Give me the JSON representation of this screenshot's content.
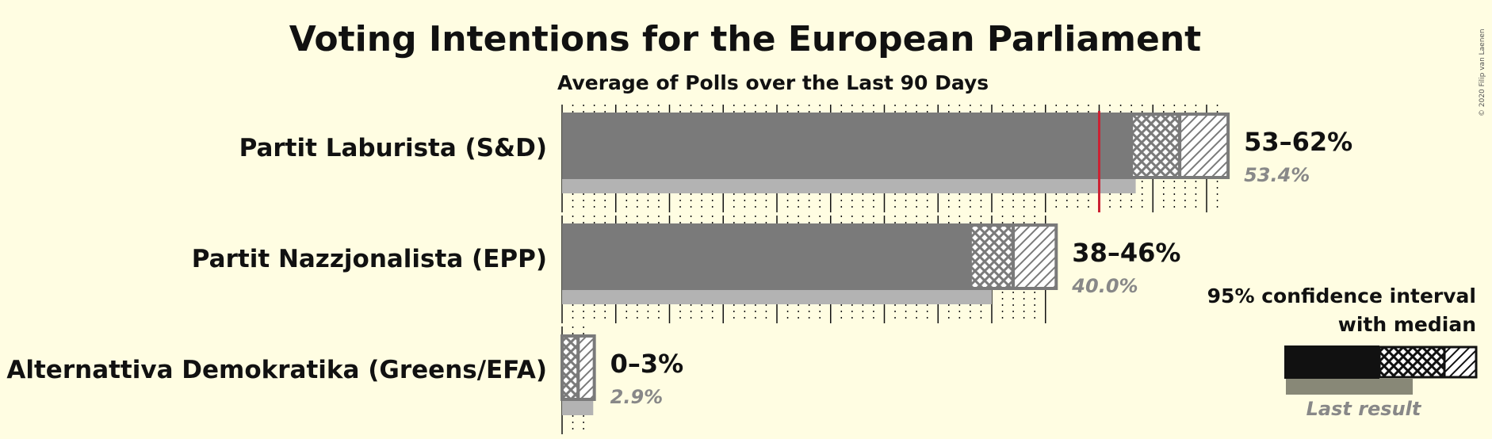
{
  "chart_data": {
    "type": "bar",
    "title": "Voting Intentions for the European Parliament",
    "subtitle": "Average of Polls over the Last 90 Days",
    "copyright": "© 2020 Filip van Laenen",
    "xlim": [
      0,
      62
    ],
    "majority_line": 50,
    "categories": [
      "Partit Laburista (S&D)",
      "Partit Nazzjonalista (EPP)",
      "Alternattiva Demokratika (Greens/EFA)"
    ],
    "series": [
      {
        "name": "95% confidence interval with median",
        "ci_low": [
          53,
          38,
          0
        ],
        "median": [
          57.5,
          42,
          1.5
        ],
        "ci_high": [
          62,
          46,
          3
        ],
        "range_labels": [
          "53–62%",
          "38–46%",
          "0–3%"
        ]
      },
      {
        "name": "Last result",
        "values": [
          53.4,
          40.0,
          2.9
        ],
        "value_labels": [
          "53.4%",
          "40.0%",
          "2.9%"
        ]
      }
    ],
    "legend": {
      "title_line1": "95% confidence interval",
      "title_line2": "with median",
      "last_result": "Last result",
      "position": "bottom-right"
    },
    "colors": {
      "background": "#fffde2",
      "bar": "#7a7a7a",
      "last_result": "#b3b3b3",
      "majority": "#cc2233",
      "legend_bar": "#111111",
      "legend_last": "#888877",
      "text": "#111111",
      "last_text": "#888888"
    }
  }
}
